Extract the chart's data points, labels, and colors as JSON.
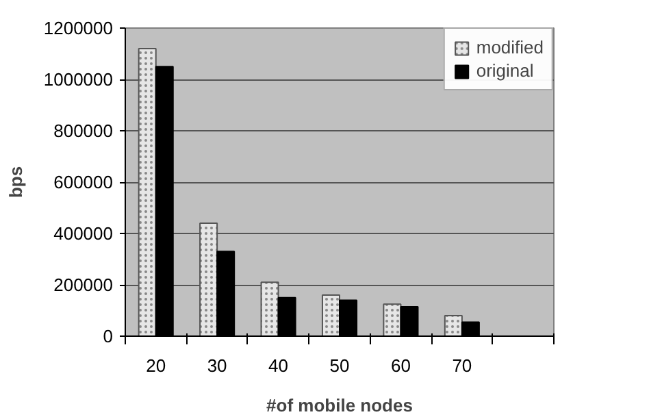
{
  "chart_data": {
    "type": "bar",
    "xlabel": "#of mobile nodes",
    "ylabel": "bps",
    "categories": [
      "20",
      "30",
      "40",
      "50",
      "60",
      "70",
      null
    ],
    "series": [
      {
        "name": "modified",
        "color": "#e6e6e6",
        "values": [
          1120000,
          440000,
          210000,
          160000,
          125000,
          80000,
          null
        ]
      },
      {
        "name": "original",
        "color": "#000000",
        "values": [
          1050000,
          330000,
          150000,
          140000,
          115000,
          55000,
          null
        ]
      }
    ],
    "ylim": [
      0,
      1200000
    ],
    "yticks": [
      0,
      200000,
      400000,
      600000,
      800000,
      1000000,
      1200000
    ],
    "grid": "y",
    "legend": "top right"
  }
}
